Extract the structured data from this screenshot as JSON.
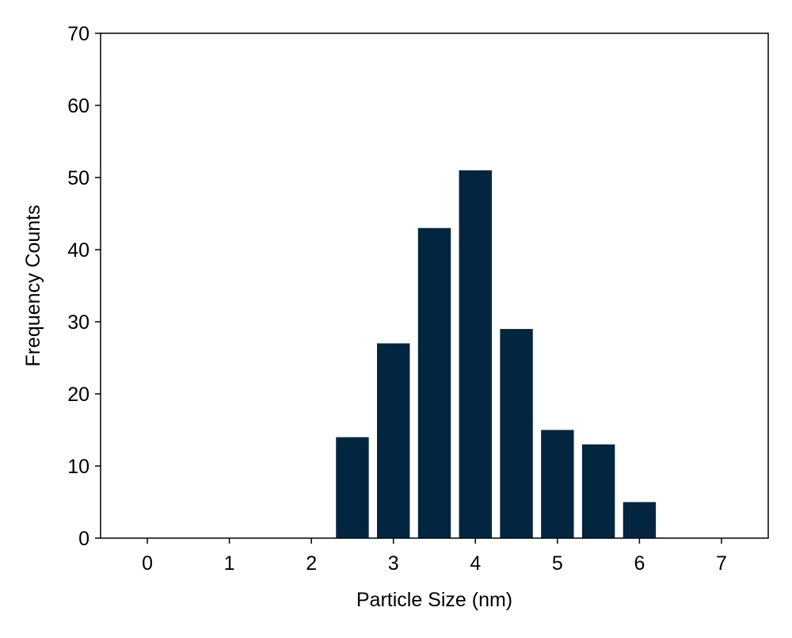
{
  "chart_data": {
    "type": "bar",
    "title": "",
    "xlabel": "Particle Size (nm)",
    "ylabel": "Frequency Counts",
    "x": [
      2.5,
      3.0,
      3.5,
      4.0,
      4.5,
      5.0,
      5.5,
      6.0
    ],
    "values": [
      14,
      27,
      43,
      51,
      29,
      15,
      13,
      5
    ],
    "bar_width": 0.4,
    "xlim": [
      -0.57,
      7.57
    ],
    "ylim": [
      0,
      70
    ],
    "xticks": [
      0,
      1,
      2,
      3,
      4,
      5,
      6,
      7
    ],
    "yticks": [
      0,
      10,
      20,
      30,
      40,
      50,
      60,
      70
    ],
    "grid": false,
    "colors": {
      "bar": "#032640",
      "axis": "#000000",
      "background": "#ffffff"
    }
  }
}
